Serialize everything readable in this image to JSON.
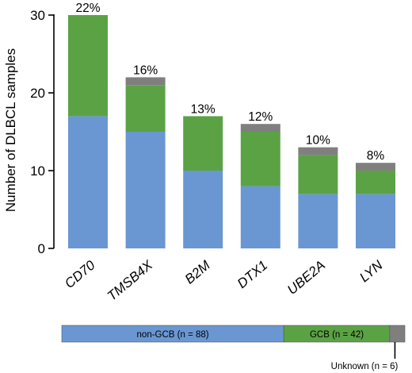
{
  "chart_data": {
    "type": "bar",
    "stacked": true,
    "categories": [
      "CD70",
      "TMSB4X",
      "B2M",
      "DTX1",
      "UBE2A",
      "LYN"
    ],
    "series": [
      {
        "key": "non_gcb",
        "values": [
          17,
          15,
          10,
          8,
          7,
          7
        ],
        "color": "#6a97d2"
      },
      {
        "key": "gcb",
        "values": [
          13,
          6,
          7,
          7,
          5,
          3
        ],
        "color": "#5ba245"
      },
      {
        "key": "unknown",
        "values": [
          0,
          1,
          0,
          1,
          1,
          1
        ],
        "color": "#7f7f7f"
      }
    ],
    "percent_labels": [
      "22%",
      "16%",
      "13%",
      "12%",
      "10%",
      "8%"
    ],
    "ylabel": "Number of DLBCL samples",
    "ylim": [
      0,
      30
    ],
    "yticks": [
      0,
      10,
      20,
      30
    ],
    "ytick_labels": [
      "0",
      "10",
      "20",
      "30"
    ],
    "grid": false
  },
  "cohort_bar": {
    "segments": [
      {
        "label": "non-GCB (n = 88)",
        "count": 88,
        "color": "#6a97d2"
      },
      {
        "label": "GCB (n = 42)",
        "count": 42,
        "color": "#5ba245"
      },
      {
        "label": "",
        "count": 6,
        "color": "#7f7f7f"
      }
    ],
    "callout": "Unknown (n = 6)"
  }
}
